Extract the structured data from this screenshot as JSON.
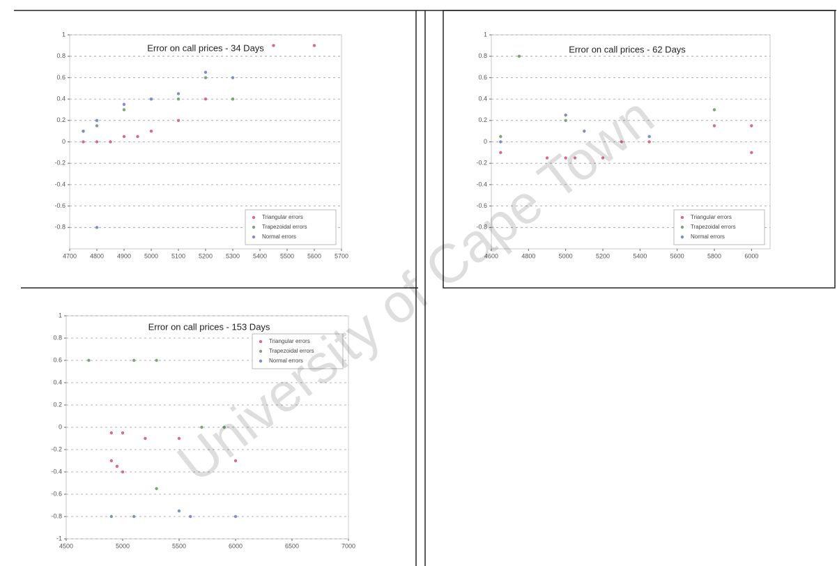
{
  "watermark": "University of Cape Town",
  "chart_data": [
    {
      "type": "scatter",
      "title": "Error on call prices - 34 Days",
      "xlim": [
        4700,
        5700
      ],
      "xticks": [
        4700,
        4800,
        4900,
        5000,
        5100,
        5200,
        5300,
        5400,
        5500,
        5600,
        5700
      ],
      "ylim": [
        -1,
        1
      ],
      "yticks": [
        -0.8,
        -0.6,
        -0.4,
        -0.2,
        0,
        0.2,
        0.4,
        0.6,
        0.8,
        1
      ],
      "grid": true,
      "legend": "lower right",
      "series": [
        {
          "name": "Triangular errors",
          "color": "#d86a8a",
          "x": [
            4750,
            4800,
            4850,
            4900,
            4950,
            5000,
            5100,
            5200,
            5300,
            5450,
            5600
          ],
          "y": [
            0.0,
            0.0,
            0.0,
            0.05,
            0.05,
            0.1,
            0.2,
            0.4,
            0.4,
            0.9,
            0.9
          ]
        },
        {
          "name": "Trapezoidal errors",
          "color": "#7aa67a",
          "x": [
            4750,
            4800,
            4900,
            5000,
            5100,
            5200,
            5300
          ],
          "y": [
            0.1,
            0.15,
            0.3,
            0.4,
            0.4,
            0.6,
            0.4
          ]
        },
        {
          "name": "Normal errors",
          "color": "#7a8ed0",
          "x": [
            4750,
            4800,
            4900,
            5000,
            5100,
            5200,
            5300,
            4800
          ],
          "y": [
            0.1,
            0.2,
            0.35,
            0.4,
            0.45,
            0.65,
            0.6,
            -0.8
          ]
        }
      ]
    },
    {
      "type": "scatter",
      "title": "Error on call prices - 62 Days",
      "xlim": [
        4600,
        6100
      ],
      "xticks": [
        4600,
        4800,
        5000,
        5200,
        5400,
        5600,
        5800,
        6000
      ],
      "ylim": [
        -1,
        1
      ],
      "yticks": [
        -0.8,
        -0.6,
        -0.4,
        -0.2,
        0,
        0.2,
        0.4,
        0.6,
        0.8,
        1
      ],
      "grid": true,
      "legend": "lower right",
      "series": [
        {
          "name": "Triangular errors",
          "color": "#d86a8a",
          "x": [
            4650,
            4900,
            5000,
            5050,
            5200,
            5300,
            5450,
            5800,
            6000,
            6000
          ],
          "y": [
            -0.1,
            -0.15,
            -0.15,
            -0.15,
            -0.15,
            0.0,
            0.0,
            0.15,
            0.15,
            -0.1
          ]
        },
        {
          "name": "Trapezoidal errors",
          "color": "#7aa67a",
          "x": [
            4650,
            5000,
            5800,
            4750
          ],
          "y": [
            0.05,
            0.2,
            0.3,
            0.8
          ]
        },
        {
          "name": "Normal errors",
          "color": "#7a8ed0",
          "x": [
            4650,
            5000,
            5100,
            5450
          ],
          "y": [
            0.0,
            0.25,
            0.1,
            0.05
          ]
        }
      ]
    },
    {
      "type": "scatter",
      "title": "Error on call prices - 153 Days",
      "xlim": [
        4500,
        7000
      ],
      "xticks": [
        4500,
        5000,
        5500,
        6000,
        6500,
        7000
      ],
      "ylim": [
        -1,
        1
      ],
      "yticks": [
        -1,
        -0.8,
        -0.6,
        -0.4,
        -0.2,
        0,
        0.2,
        0.4,
        0.6,
        0.8,
        1
      ],
      "grid": true,
      "legend": "upper right",
      "series": [
        {
          "name": "Triangular errors",
          "color": "#d86a8a",
          "x": [
            4900,
            5000,
            5200,
            5500,
            6000,
            4900,
            4950,
            5000
          ],
          "y": [
            -0.05,
            -0.05,
            -0.1,
            -0.1,
            -0.3,
            -0.3,
            -0.35,
            -0.4
          ]
        },
        {
          "name": "Trapezoidal errors",
          "color": "#7aa67a",
          "x": [
            4700,
            5100,
            5300,
            5700,
            5900,
            5300
          ],
          "y": [
            0.6,
            0.6,
            0.6,
            0.0,
            0.0,
            -0.55
          ]
        },
        {
          "name": "Normal errors",
          "color": "#7a8ed0",
          "x": [
            4900,
            5100,
            5500,
            5600,
            6000
          ],
          "y": [
            -0.8,
            -0.8,
            -0.75,
            -0.8,
            -0.8
          ]
        }
      ]
    }
  ]
}
